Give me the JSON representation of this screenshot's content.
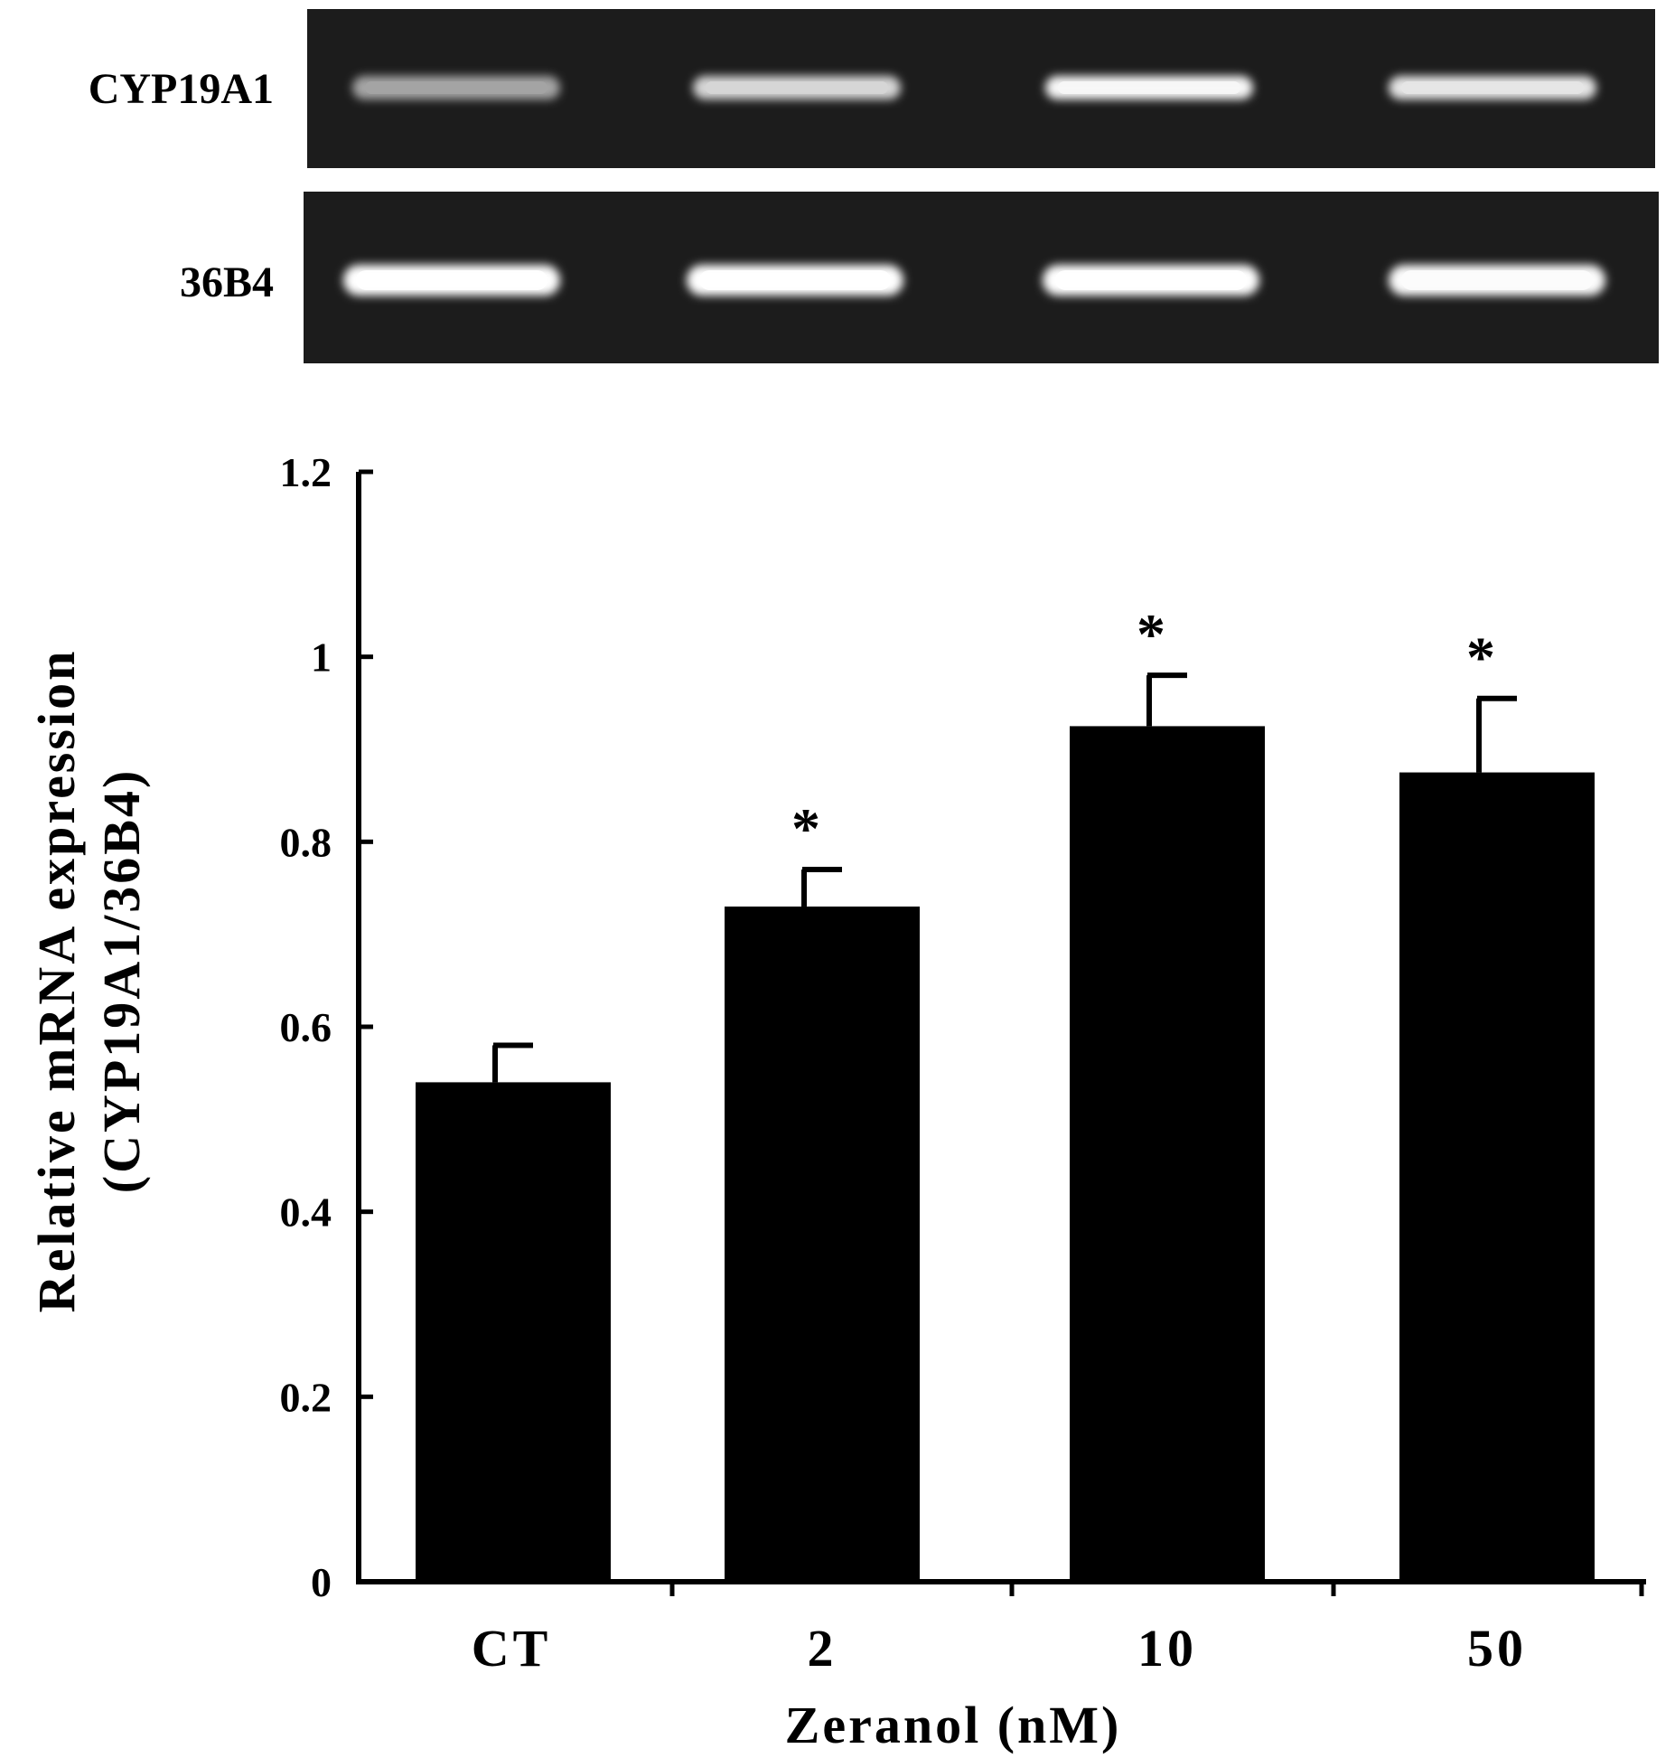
{
  "gel": {
    "rows": [
      {
        "label": "CYP19A1",
        "band_intensity": [
          0.45,
          0.75,
          0.95,
          0.85
        ]
      },
      {
        "label": "36B4",
        "band_intensity": [
          1.0,
          1.0,
          1.0,
          0.98
        ]
      }
    ]
  },
  "chart_data": {
    "type": "bar",
    "categories": [
      "CT",
      "2",
      "10",
      "50"
    ],
    "values": [
      0.54,
      0.73,
      0.925,
      0.875
    ],
    "errors": [
      0.04,
      0.04,
      0.055,
      0.08
    ],
    "significance": [
      "",
      "*",
      "*",
      "*"
    ],
    "title": "",
    "xlabel": "Zeranol (nM)",
    "ylabel_lines": [
      "Relative mRNA expression",
      "(CYP19A1/36B4)"
    ],
    "yticks": [
      "0",
      "0.2",
      "0.4",
      "0.6",
      "0.8",
      "1",
      "1.2"
    ],
    "ylim": [
      0,
      1.2
    ],
    "grid": false,
    "colors": {
      "bar": "#000000",
      "gel_background": "#1c1c1c",
      "band": "#ffffff"
    }
  }
}
